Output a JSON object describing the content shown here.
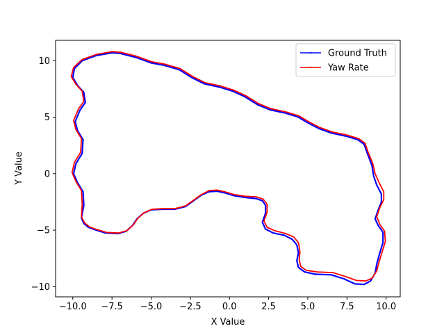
{
  "chart_data": {
    "type": "line",
    "xlabel": "X Value",
    "ylabel": "Y Value",
    "xlim": [
      -11.1,
      10.9
    ],
    "ylim": [
      -10.9,
      11.8
    ],
    "xticks": [
      -10.0,
      -7.5,
      -5.0,
      -2.5,
      0.0,
      2.5,
      5.0,
      7.5,
      10.0
    ],
    "xtick_labels": [
      "−10.0",
      "−7.5",
      "−5.0",
      "−2.5",
      "0.0",
      "2.5",
      "5.0",
      "7.5",
      "10.0"
    ],
    "yticks": [
      -10,
      -5,
      0,
      5,
      10
    ],
    "ytick_labels": [
      "−10",
      "−5",
      "0",
      "5",
      "10"
    ],
    "grid": false,
    "legend_position": "top-right",
    "series": [
      {
        "name": "Ground Truth",
        "color": "#0000ff",
        "points": [
          [
            -9.45,
            -3.9
          ],
          [
            -9.3,
            -4.4
          ],
          [
            -9.0,
            -4.75
          ],
          [
            -8.5,
            -5.0
          ],
          [
            -7.9,
            -5.25
          ],
          [
            -7.1,
            -5.3
          ],
          [
            -6.6,
            -5.1
          ],
          [
            -6.2,
            -4.6
          ],
          [
            -5.9,
            -4.0
          ],
          [
            -5.5,
            -3.5
          ],
          [
            -5.0,
            -3.2
          ],
          [
            -4.3,
            -3.15
          ],
          [
            -3.5,
            -3.15
          ],
          [
            -2.8,
            -2.9
          ],
          [
            -2.3,
            -2.4
          ],
          [
            -1.8,
            -1.9
          ],
          [
            -1.3,
            -1.6
          ],
          [
            -0.8,
            -1.55
          ],
          [
            -0.3,
            -1.7
          ],
          [
            0.3,
            -1.95
          ],
          [
            1.0,
            -2.1
          ],
          [
            1.7,
            -2.2
          ],
          [
            2.1,
            -2.4
          ],
          [
            2.3,
            -2.8
          ],
          [
            2.3,
            -3.5
          ],
          [
            2.1,
            -4.3
          ],
          [
            2.3,
            -4.9
          ],
          [
            2.8,
            -5.25
          ],
          [
            3.5,
            -5.45
          ],
          [
            4.0,
            -5.8
          ],
          [
            4.3,
            -6.3
          ],
          [
            4.4,
            -7.0
          ],
          [
            4.3,
            -7.7
          ],
          [
            4.4,
            -8.3
          ],
          [
            4.8,
            -8.7
          ],
          [
            5.5,
            -8.9
          ],
          [
            6.5,
            -8.95
          ],
          [
            7.3,
            -9.3
          ],
          [
            8.0,
            -9.75
          ],
          [
            8.6,
            -9.8
          ],
          [
            9.0,
            -9.5
          ],
          [
            9.3,
            -8.8
          ],
          [
            9.4,
            -8.0
          ],
          [
            9.6,
            -7.0
          ],
          [
            9.8,
            -6.1
          ],
          [
            9.8,
            -5.2
          ],
          [
            9.5,
            -4.6
          ],
          [
            9.3,
            -4.0
          ],
          [
            9.5,
            -3.2
          ],
          [
            9.7,
            -2.5
          ],
          [
            9.7,
            -1.8
          ],
          [
            9.4,
            -1.0
          ],
          [
            9.2,
            -0.2
          ],
          [
            9.1,
            0.7
          ],
          [
            8.8,
            1.8
          ],
          [
            8.6,
            2.6
          ],
          [
            8.2,
            3.0
          ],
          [
            7.5,
            3.3
          ],
          [
            6.5,
            3.6
          ],
          [
            5.7,
            4.0
          ],
          [
            5.0,
            4.5
          ],
          [
            4.4,
            5.0
          ],
          [
            3.6,
            5.35
          ],
          [
            2.6,
            5.65
          ],
          [
            1.8,
            6.1
          ],
          [
            1.0,
            6.8
          ],
          [
            0.2,
            7.3
          ],
          [
            -0.6,
            7.65
          ],
          [
            -1.6,
            7.95
          ],
          [
            -2.4,
            8.5
          ],
          [
            -3.2,
            9.2
          ],
          [
            -4.2,
            9.6
          ],
          [
            -5.0,
            9.8
          ],
          [
            -6.0,
            10.3
          ],
          [
            -7.0,
            10.65
          ],
          [
            -7.5,
            10.7
          ],
          [
            -8.5,
            10.45
          ],
          [
            -9.4,
            10.0
          ],
          [
            -9.9,
            9.3
          ],
          [
            -10.0,
            8.5
          ],
          [
            -9.7,
            7.8
          ],
          [
            -9.3,
            7.2
          ],
          [
            -9.2,
            6.3
          ],
          [
            -9.55,
            5.6
          ],
          [
            -9.85,
            4.6
          ],
          [
            -9.7,
            3.8
          ],
          [
            -9.35,
            3.0
          ],
          [
            -9.4,
            1.8
          ],
          [
            -9.8,
            0.9
          ],
          [
            -9.95,
            0.0
          ],
          [
            -9.7,
            -0.8
          ],
          [
            -9.35,
            -1.6
          ],
          [
            -9.3,
            -2.8
          ],
          [
            -9.45,
            -3.9
          ]
        ]
      },
      {
        "name": "Yaw Rate",
        "color": "#ff0000",
        "points": [
          [
            -9.45,
            -3.8
          ],
          [
            -9.25,
            -4.35
          ],
          [
            -8.95,
            -4.7
          ],
          [
            -8.45,
            -4.95
          ],
          [
            -7.85,
            -5.2
          ],
          [
            -7.1,
            -5.25
          ],
          [
            -6.55,
            -5.05
          ],
          [
            -6.15,
            -4.55
          ],
          [
            -5.85,
            -3.95
          ],
          [
            -5.45,
            -3.45
          ],
          [
            -4.95,
            -3.15
          ],
          [
            -4.3,
            -3.1
          ],
          [
            -3.5,
            -3.1
          ],
          [
            -2.8,
            -2.85
          ],
          [
            -2.3,
            -2.35
          ],
          [
            -1.8,
            -1.85
          ],
          [
            -1.3,
            -1.5
          ],
          [
            -0.8,
            -1.45
          ],
          [
            -0.3,
            -1.6
          ],
          [
            0.3,
            -1.85
          ],
          [
            1.0,
            -2.0
          ],
          [
            1.7,
            -2.05
          ],
          [
            2.15,
            -2.25
          ],
          [
            2.4,
            -2.7
          ],
          [
            2.4,
            -3.4
          ],
          [
            2.2,
            -4.2
          ],
          [
            2.4,
            -4.75
          ],
          [
            2.9,
            -5.05
          ],
          [
            3.6,
            -5.3
          ],
          [
            4.1,
            -5.6
          ],
          [
            4.4,
            -6.1
          ],
          [
            4.5,
            -6.9
          ],
          [
            4.45,
            -7.6
          ],
          [
            4.55,
            -8.2
          ],
          [
            4.9,
            -8.55
          ],
          [
            5.6,
            -8.7
          ],
          [
            6.6,
            -8.75
          ],
          [
            7.4,
            -9.1
          ],
          [
            8.1,
            -9.45
          ],
          [
            8.7,
            -9.5
          ],
          [
            9.1,
            -9.25
          ],
          [
            9.4,
            -8.6
          ],
          [
            9.55,
            -7.8
          ],
          [
            9.75,
            -6.9
          ],
          [
            9.95,
            -6.0
          ],
          [
            9.9,
            -5.1
          ],
          [
            9.6,
            -4.5
          ],
          [
            9.4,
            -3.8
          ],
          [
            9.6,
            -3.0
          ],
          [
            9.85,
            -2.3
          ],
          [
            9.85,
            -1.6
          ],
          [
            9.55,
            -0.8
          ],
          [
            9.3,
            0.0
          ],
          [
            9.15,
            0.9
          ],
          [
            8.85,
            1.9
          ],
          [
            8.65,
            2.7
          ],
          [
            8.25,
            3.1
          ],
          [
            7.55,
            3.4
          ],
          [
            6.55,
            3.7
          ],
          [
            5.75,
            4.1
          ],
          [
            5.05,
            4.6
          ],
          [
            4.45,
            5.1
          ],
          [
            3.65,
            5.45
          ],
          [
            2.65,
            5.75
          ],
          [
            1.85,
            6.2
          ],
          [
            1.05,
            6.9
          ],
          [
            0.25,
            7.4
          ],
          [
            -0.55,
            7.75
          ],
          [
            -1.55,
            8.05
          ],
          [
            -2.35,
            8.6
          ],
          [
            -3.15,
            9.3
          ],
          [
            -4.15,
            9.7
          ],
          [
            -4.95,
            9.9
          ],
          [
            -5.95,
            10.4
          ],
          [
            -6.95,
            10.75
          ],
          [
            -7.5,
            10.8
          ],
          [
            -8.5,
            10.55
          ],
          [
            -9.4,
            10.1
          ],
          [
            -9.95,
            9.4
          ],
          [
            -10.1,
            8.6
          ],
          [
            -9.8,
            7.9
          ],
          [
            -9.4,
            7.3
          ],
          [
            -9.3,
            6.4
          ],
          [
            -9.65,
            5.7
          ],
          [
            -9.95,
            4.7
          ],
          [
            -9.8,
            3.9
          ],
          [
            -9.45,
            3.1
          ],
          [
            -9.5,
            1.9
          ],
          [
            -9.9,
            1.0
          ],
          [
            -10.05,
            0.1
          ],
          [
            -9.8,
            -0.7
          ],
          [
            -9.45,
            -1.5
          ],
          [
            -9.4,
            -2.7
          ],
          [
            -9.45,
            -3.8
          ]
        ]
      }
    ]
  }
}
